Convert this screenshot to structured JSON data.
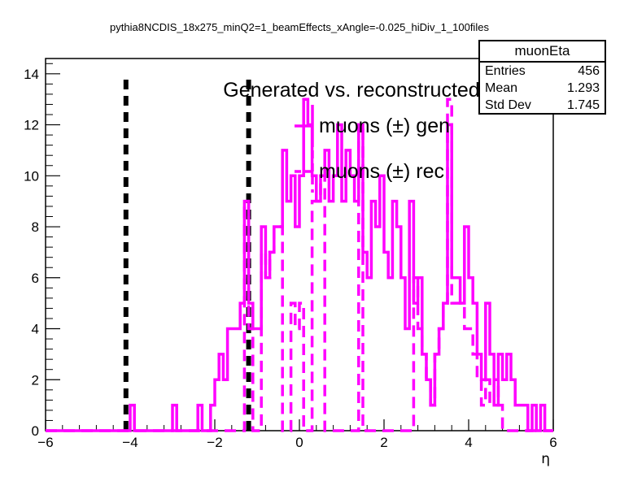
{
  "chart_data": {
    "type": "histogram",
    "title": "pythia8NCDIS_18x275_minQ2=1_beamEffects_xAngle=-0.025_hiDiv_1_100files",
    "xlabel": "η",
    "ylabel": "",
    "xlim": [
      -6,
      6
    ],
    "ylim": [
      0,
      14.6
    ],
    "x_ticks": [
      "−6",
      "−4",
      "−2",
      "0",
      "2",
      "4",
      "6"
    ],
    "y_ticks": [
      "0",
      "2",
      "4",
      "6",
      "8",
      "10",
      "12",
      "14"
    ],
    "legend": {
      "header": "Generated vs. reconstructed",
      "entries": [
        "muons (±) gen",
        "muons (±) rec"
      ],
      "placement": "top-center"
    },
    "color": "#ff00ff",
    "bin_width": 0.1,
    "series": [
      {
        "name": "muons (±) gen",
        "style": "solid",
        "bins": [
          [
            -4.0,
            1
          ],
          [
            -3.0,
            1
          ],
          [
            -2.4,
            1
          ],
          [
            -2.1,
            1
          ],
          [
            -2.0,
            2
          ],
          [
            -1.9,
            3
          ],
          [
            -1.8,
            2
          ],
          [
            -1.7,
            4
          ],
          [
            -1.6,
            4
          ],
          [
            -1.5,
            4
          ],
          [
            -1.4,
            5
          ],
          [
            -1.3,
            9
          ],
          [
            -1.2,
            5
          ],
          [
            -1.1,
            4
          ],
          [
            -1.0,
            4
          ],
          [
            -0.9,
            8
          ],
          [
            -0.8,
            6
          ],
          [
            -0.7,
            7
          ],
          [
            -0.6,
            8
          ],
          [
            -0.5,
            8
          ],
          [
            -0.4,
            11
          ],
          [
            -0.3,
            9
          ],
          [
            -0.2,
            10
          ],
          [
            -0.1,
            8
          ],
          [
            0.0,
            10
          ],
          [
            0.1,
            13
          ],
          [
            0.2,
            12
          ],
          [
            0.3,
            10
          ],
          [
            0.4,
            9
          ],
          [
            0.5,
            10
          ],
          [
            0.6,
            11
          ],
          [
            0.7,
            9
          ],
          [
            0.8,
            10
          ],
          [
            0.9,
            12
          ],
          [
            1.0,
            9
          ],
          [
            1.1,
            11
          ],
          [
            1.2,
            10
          ],
          [
            1.3,
            9
          ],
          [
            1.4,
            12
          ],
          [
            1.5,
            7
          ],
          [
            1.6,
            6
          ],
          [
            1.7,
            9
          ],
          [
            1.8,
            8
          ],
          [
            1.9,
            10
          ],
          [
            2.0,
            7
          ],
          [
            2.1,
            6
          ],
          [
            2.2,
            9
          ],
          [
            2.3,
            8
          ],
          [
            2.4,
            6
          ],
          [
            2.5,
            4
          ],
          [
            2.6,
            9
          ],
          [
            2.7,
            5
          ],
          [
            2.8,
            6
          ],
          [
            2.9,
            3
          ],
          [
            3.0,
            2
          ],
          [
            3.1,
            1
          ],
          [
            3.2,
            3
          ],
          [
            3.3,
            4
          ],
          [
            3.4,
            5
          ],
          [
            3.5,
            12
          ],
          [
            3.6,
            6
          ],
          [
            3.7,
            6
          ],
          [
            3.8,
            5
          ],
          [
            3.9,
            8
          ],
          [
            4.0,
            6
          ],
          [
            4.1,
            5
          ],
          [
            4.2,
            3
          ],
          [
            4.3,
            2
          ],
          [
            4.4,
            5
          ],
          [
            4.5,
            3
          ],
          [
            4.6,
            1
          ],
          [
            4.7,
            3
          ],
          [
            4.8,
            2
          ],
          [
            4.9,
            3
          ],
          [
            5.0,
            2
          ],
          [
            5.1,
            1
          ],
          [
            5.2,
            1
          ],
          [
            5.3,
            1
          ],
          [
            5.5,
            1
          ],
          [
            5.7,
            1
          ]
        ]
      },
      {
        "name": "muons (±) rec",
        "style": "dashed",
        "bins": [
          [
            -1.3,
            9
          ],
          [
            -1.2,
            4
          ],
          [
            -0.9,
            7
          ],
          [
            -0.8,
            6
          ],
          [
            -0.7,
            7
          ],
          [
            -0.6,
            8
          ],
          [
            -0.5,
            8
          ],
          [
            -0.2,
            5
          ],
          [
            -0.1,
            4
          ],
          [
            0.0,
            5
          ],
          [
            0.3,
            9
          ],
          [
            0.4,
            9
          ],
          [
            0.5,
            10
          ],
          [
            1.4,
            12
          ],
          [
            2.7,
            6
          ],
          [
            2.8,
            4
          ],
          [
            2.9,
            3
          ],
          [
            3.0,
            2
          ],
          [
            3.1,
            1
          ],
          [
            3.2,
            3
          ],
          [
            3.3,
            4
          ],
          [
            3.4,
            5
          ],
          [
            3.5,
            13
          ],
          [
            3.6,
            5
          ],
          [
            3.7,
            5
          ],
          [
            3.8,
            5
          ],
          [
            3.9,
            4
          ],
          [
            4.0,
            4
          ],
          [
            4.1,
            3
          ],
          [
            4.2,
            2
          ],
          [
            4.3,
            1
          ],
          [
            4.4,
            2
          ],
          [
            4.5,
            1
          ],
          [
            4.6,
            2
          ],
          [
            4.7,
            1
          ]
        ]
      }
    ],
    "cut_lines": [
      -4.1,
      -1.2
    ],
    "stats": {
      "title": "muonEta",
      "rows": [
        {
          "key": "Entries",
          "value": "456"
        },
        {
          "key": "Mean",
          "value": "1.293"
        },
        {
          "key": "Std Dev",
          "value": "1.745"
        }
      ]
    }
  }
}
